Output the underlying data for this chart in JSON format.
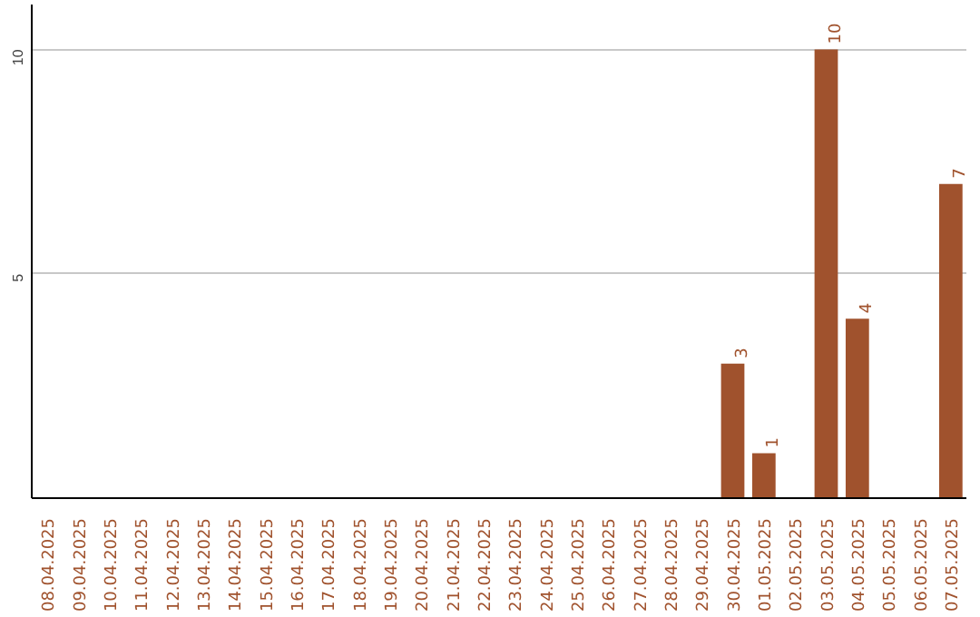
{
  "chart_data": {
    "type": "bar",
    "categories": [
      "08.04.2025",
      "09.04.2025",
      "10.04.2025",
      "11.04.2025",
      "12.04.2025",
      "13.04.2025",
      "14.04.2025",
      "15.04.2025",
      "16.04.2025",
      "17.04.2025",
      "18.04.2025",
      "19.04.2025",
      "20.04.2025",
      "21.04.2025",
      "22.04.2025",
      "23.04.2025",
      "24.04.2025",
      "25.04.2025",
      "26.04.2025",
      "27.04.2025",
      "28.04.2025",
      "29.04.2025",
      "30.04.2025",
      "01.05.2025",
      "02.05.2025",
      "03.05.2025",
      "04.05.2025",
      "05.05.2025",
      "06.05.2025",
      "07.05.2025"
    ],
    "values": [
      0,
      0,
      0,
      0,
      0,
      0,
      0,
      0,
      0,
      0,
      0,
      0,
      0,
      0,
      0,
      0,
      0,
      0,
      0,
      0,
      0,
      0,
      3,
      1,
      0,
      10,
      4,
      0,
      0,
      7
    ],
    "value_labels": [
      null,
      null,
      null,
      null,
      null,
      null,
      null,
      null,
      null,
      null,
      null,
      null,
      null,
      null,
      null,
      null,
      null,
      null,
      null,
      null,
      null,
      null,
      "3",
      "1",
      null,
      "10",
      "4",
      null,
      null,
      "7"
    ],
    "color": "#a0522d",
    "ylim": [
      0,
      11
    ],
    "yticks": [
      5,
      10
    ],
    "grid": "y"
  }
}
